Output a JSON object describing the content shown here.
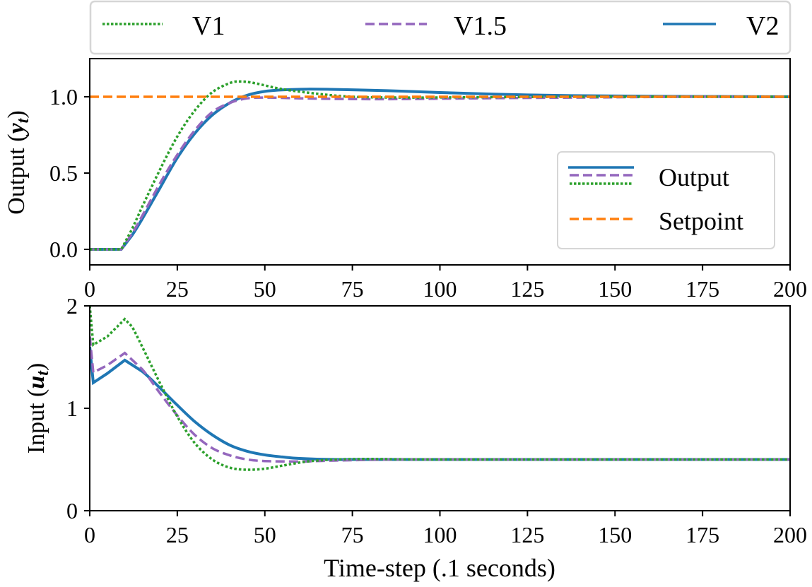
{
  "chart_data": [
    {
      "type": "line",
      "panel": "top",
      "title": "",
      "xlabel": "",
      "ylabel": "Output (y_t)",
      "ylabel_plain": "Output (",
      "ylabel_var": "y",
      "ylabel_sub": "t",
      "xlim": [
        0,
        200
      ],
      "ylim": [
        -0.1,
        1.25
      ],
      "xticks": [
        0,
        25,
        50,
        75,
        100,
        125,
        150,
        175,
        200
      ],
      "xtick_labels": [
        "0",
        "25",
        "50",
        "75",
        "100",
        "125",
        "150",
        "175",
        "200"
      ],
      "yticks": [
        0.0,
        0.5,
        1.0
      ],
      "ytick_labels": [
        "0.0",
        "0.5",
        "1.0"
      ],
      "grid": false,
      "legend": {
        "position": "lower right",
        "entries": [
          {
            "label": "Output",
            "styles": [
              "solid-blue",
              "dashed-purple",
              "dotted-green"
            ]
          },
          {
            "label": "Setpoint",
            "styles": [
              "dashed-orange"
            ]
          }
        ]
      },
      "series": [
        {
          "name": "V1",
          "style": "dotted",
          "color": "#2ca02c",
          "x": [
            0,
            9,
            12,
            15,
            20,
            25,
            30,
            35,
            40,
            43,
            47,
            55,
            65,
            75,
            90,
            110,
            140,
            170,
            200
          ],
          "y": [
            0,
            0,
            0.13,
            0.28,
            0.52,
            0.74,
            0.91,
            1.03,
            1.09,
            1.1,
            1.09,
            1.05,
            1.02,
            1.0,
            0.995,
            0.997,
            1.0,
            1.0,
            1.0
          ]
        },
        {
          "name": "V1.5",
          "style": "dashed",
          "color": "#9467bd",
          "x": [
            0,
            9,
            12,
            15,
            20,
            25,
            30,
            35,
            40,
            45,
            50,
            60,
            75,
            90,
            110,
            140,
            170,
            200
          ],
          "y": [
            0,
            0,
            0.1,
            0.22,
            0.43,
            0.62,
            0.78,
            0.9,
            0.96,
            0.99,
            0.995,
            0.99,
            0.985,
            0.985,
            0.99,
            0.995,
            1.0,
            1.0
          ]
        },
        {
          "name": "V2",
          "style": "solid",
          "color": "#1f77b4",
          "x": [
            0,
            9,
            12,
            15,
            20,
            25,
            30,
            35,
            40,
            45,
            50,
            55,
            62,
            70,
            85,
            100,
            125,
            150,
            175,
            200
          ],
          "y": [
            0,
            0,
            0.09,
            0.2,
            0.4,
            0.6,
            0.76,
            0.88,
            0.96,
            1.01,
            1.035,
            1.045,
            1.05,
            1.048,
            1.04,
            1.028,
            1.012,
            1.005,
            1.002,
            1.0
          ]
        },
        {
          "name": "Setpoint",
          "style": "dashed",
          "color": "#ff7f0e",
          "x": [
            0,
            200
          ],
          "y": [
            1.0,
            1.0
          ]
        }
      ]
    },
    {
      "type": "line",
      "panel": "bottom",
      "title": "",
      "xlabel": "Time-step (.1 seconds)",
      "ylabel": "Input (u_t)",
      "ylabel_plain": "Input (",
      "ylabel_var": "u",
      "ylabel_sub": "t",
      "xlim": [
        0,
        200
      ],
      "ylim": [
        0,
        2
      ],
      "xticks": [
        0,
        25,
        50,
        75,
        100,
        125,
        150,
        175,
        200
      ],
      "xtick_labels": [
        "0",
        "25",
        "50",
        "75",
        "100",
        "125",
        "150",
        "175",
        "200"
      ],
      "yticks": [
        0,
        1,
        2
      ],
      "ytick_labels": [
        "0",
        "1",
        "2"
      ],
      "grid": false,
      "series": [
        {
          "name": "V1",
          "style": "dotted",
          "color": "#2ca02c",
          "x": [
            0,
            1,
            5,
            10,
            12,
            15,
            20,
            25,
            30,
            35,
            40,
            45,
            50,
            55,
            62,
            70,
            80,
            100,
            150,
            200
          ],
          "y": [
            2.0,
            1.62,
            1.7,
            1.87,
            1.8,
            1.6,
            1.25,
            0.92,
            0.66,
            0.5,
            0.42,
            0.4,
            0.41,
            0.44,
            0.48,
            0.5,
            0.505,
            0.5,
            0.5,
            0.5
          ]
        },
        {
          "name": "V1.5",
          "style": "dashed",
          "color": "#9467bd",
          "x": [
            0,
            1,
            5,
            10,
            15,
            20,
            25,
            30,
            35,
            40,
            45,
            50,
            60,
            70,
            90,
            120,
            150,
            200
          ],
          "y": [
            1.7,
            1.35,
            1.42,
            1.54,
            1.38,
            1.15,
            0.93,
            0.74,
            0.61,
            0.54,
            0.5,
            0.485,
            0.48,
            0.49,
            0.5,
            0.5,
            0.5,
            0.5
          ]
        },
        {
          "name": "V2",
          "style": "solid",
          "color": "#1f77b4",
          "x": [
            0,
            1,
            5,
            10,
            15,
            20,
            25,
            30,
            35,
            40,
            45,
            50,
            55,
            60,
            70,
            80,
            100,
            150,
            200
          ],
          "y": [
            1.6,
            1.25,
            1.34,
            1.47,
            1.36,
            1.2,
            1.03,
            0.87,
            0.74,
            0.64,
            0.58,
            0.545,
            0.525,
            0.51,
            0.5,
            0.5,
            0.5,
            0.5,
            0.5
          ]
        }
      ]
    }
  ],
  "figure_legend": {
    "entries": [
      {
        "label": "V1",
        "style": "dotted",
        "color": "#2ca02c"
      },
      {
        "label": "V1.5",
        "style": "dashed",
        "color": "#9467bd"
      },
      {
        "label": "V2",
        "style": "solid",
        "color": "#1f77b4"
      }
    ]
  },
  "inset_legend": {
    "output_label": "Output",
    "setpoint_label": "Setpoint"
  },
  "colors": {
    "v1": "#2ca02c",
    "v15": "#9467bd",
    "v2": "#1f77b4",
    "setpoint": "#ff7f0e",
    "legend_border": "#d6d6d6"
  }
}
